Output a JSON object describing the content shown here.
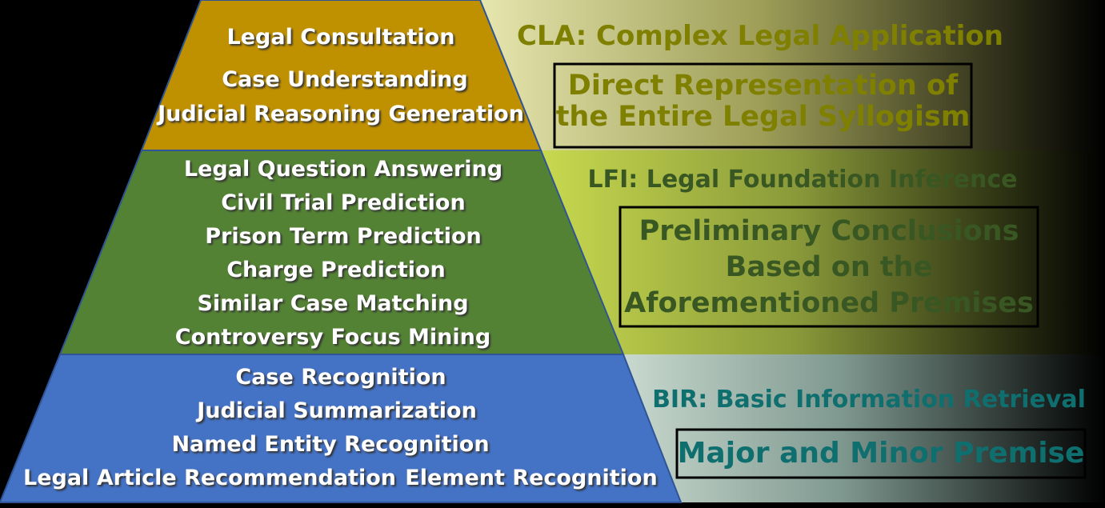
{
  "tiers": [
    {
      "color": "#BF9000",
      "items": [
        "Legal Consultation",
        "Case Understanding",
        "Judicial Reasoning Generation"
      ],
      "heading": "CLA: Complex Legal Application",
      "heading_color": "#7F7F00",
      "description": [
        "Direct Representation of",
        "the Entire Legal Syllogism"
      ],
      "description_color": "#7F7F00"
    },
    {
      "color": "#548235",
      "items": [
        "Legal Question Answering",
        "Civil Trial Prediction",
        "Prison Term Prediction",
        "Charge Prediction",
        "Similar Case Matching",
        "Controversy Focus Mining"
      ],
      "heading": "LFI: Legal Foundation Inference",
      "heading_color": "#385723",
      "description": [
        "Preliminary Conclusions",
        "Based on the",
        "Aforementioned Premises"
      ],
      "description_color": "#385723"
    },
    {
      "color": "#4472C4",
      "items": [
        "Case Recognition",
        "Judicial Summarization",
        "Named Entity Recognition",
        "Legal Article Recommendation",
        "Element Recognition"
      ],
      "heading": "BIR: Basic Information Retrieval",
      "heading_color": "#0F6E6E",
      "description": [
        "Major and Minor Premise"
      ],
      "description_color": "#0F6E6E"
    }
  ]
}
